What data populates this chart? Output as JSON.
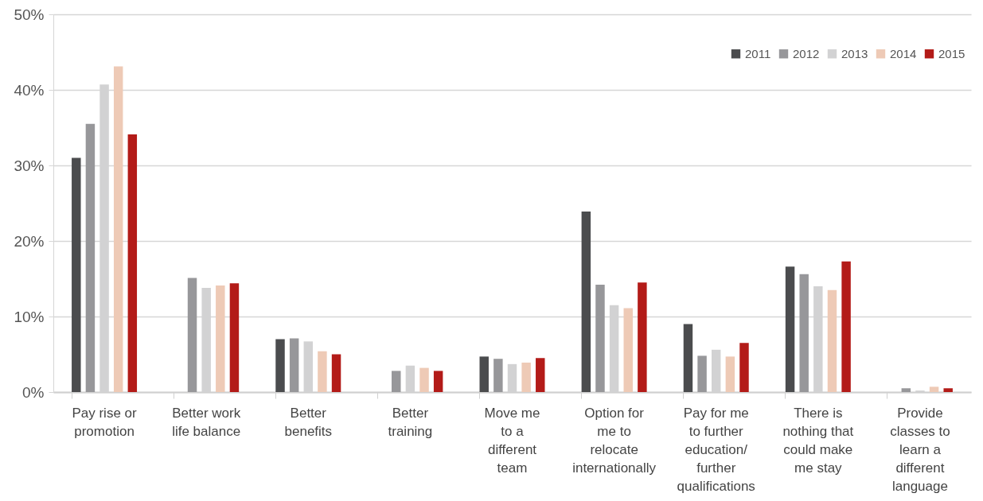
{
  "chart_data": {
    "type": "bar",
    "categories": [
      "Pay rise or\npromotion",
      "Better work\nlife balance",
      "Better\nbenefits",
      "Better\ntraining",
      "Move me\nto a\ndifferent\nteam",
      "Option for\nme to\nrelocate\ninternationally",
      "Pay for me\nto further\neducation/\nfurther\nqualifications",
      "There is\nnothing that\ncould make\nme stay",
      "Provide\nclasses to\nlearn a\ndifferent\nlanguage"
    ],
    "series": [
      {
        "name": "2011",
        "color": "#4b4c4e",
        "values": [
          31.0,
          0,
          7.0,
          0,
          4.7,
          23.9,
          9.0,
          16.6,
          0
        ]
      },
      {
        "name": "2012",
        "color": "#97979a",
        "values": [
          35.5,
          15.1,
          7.1,
          2.8,
          4.4,
          14.2,
          4.8,
          15.6,
          0.5
        ]
      },
      {
        "name": "2013",
        "color": "#d2d2d3",
        "values": [
          40.7,
          13.8,
          6.7,
          3.5,
          3.7,
          11.5,
          5.6,
          14.0,
          0.2
        ]
      },
      {
        "name": "2014",
        "color": "#eecab6",
        "values": [
          43.1,
          14.1,
          5.4,
          3.2,
          3.9,
          11.1,
          4.7,
          13.5,
          0.7
        ]
      },
      {
        "name": "2015",
        "color": "#b31b18",
        "values": [
          34.1,
          14.4,
          5.0,
          2.8,
          4.5,
          14.5,
          6.5,
          17.3,
          0.5
        ]
      }
    ],
    "ylim": [
      0,
      50
    ],
    "yticks": [
      {
        "value": 0,
        "label": "0%"
      },
      {
        "value": 10,
        "label": "10%"
      },
      {
        "value": 20,
        "label": "20%"
      },
      {
        "value": 30,
        "label": "30%"
      },
      {
        "value": 40,
        "label": "40%"
      },
      {
        "value": 50,
        "label": "50%"
      }
    ],
    "grid": "y",
    "legend": "top right"
  }
}
